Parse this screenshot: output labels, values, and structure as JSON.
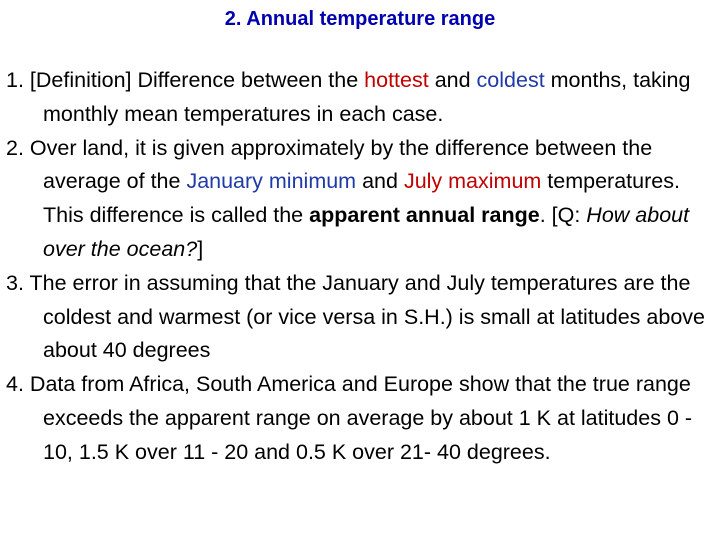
{
  "title": "2. Annual temperature range",
  "points": [
    {
      "num": "1.",
      "parts": [
        "[Definition] Difference between the ",
        "hottest",
        " and ",
        "coldest",
        " months, taking monthly mean temperatures in each case."
      ]
    },
    {
      "num": "2.",
      "parts": [
        "Over land, it is given approximately by the difference between the average of the ",
        "January minimum",
        " and ",
        "July maximum",
        " temperatures. This difference is called the ",
        "apparent annual range",
        ". [Q: ",
        "How about over the ocean?",
        "]"
      ]
    },
    {
      "num": "3.",
      "parts": [
        "The error in assuming that the January and July temperatures are the coldest and warmest (or vice versa in S.H.) is small at latitudes above about 40 degrees"
      ]
    },
    {
      "num": "4.",
      "parts": [
        "Data from Africa, South America and Europe show that the true range exceeds the apparent range on average by about 1 K at latitudes 0 - 10, 1.5 K over 11 - 20 and 0.5 K over 21- 40 degrees."
      ]
    }
  ],
  "colors": {
    "title": "#0000b0",
    "hot": "#c00000",
    "cold": "#1f3aa8",
    "text": "#000000"
  }
}
